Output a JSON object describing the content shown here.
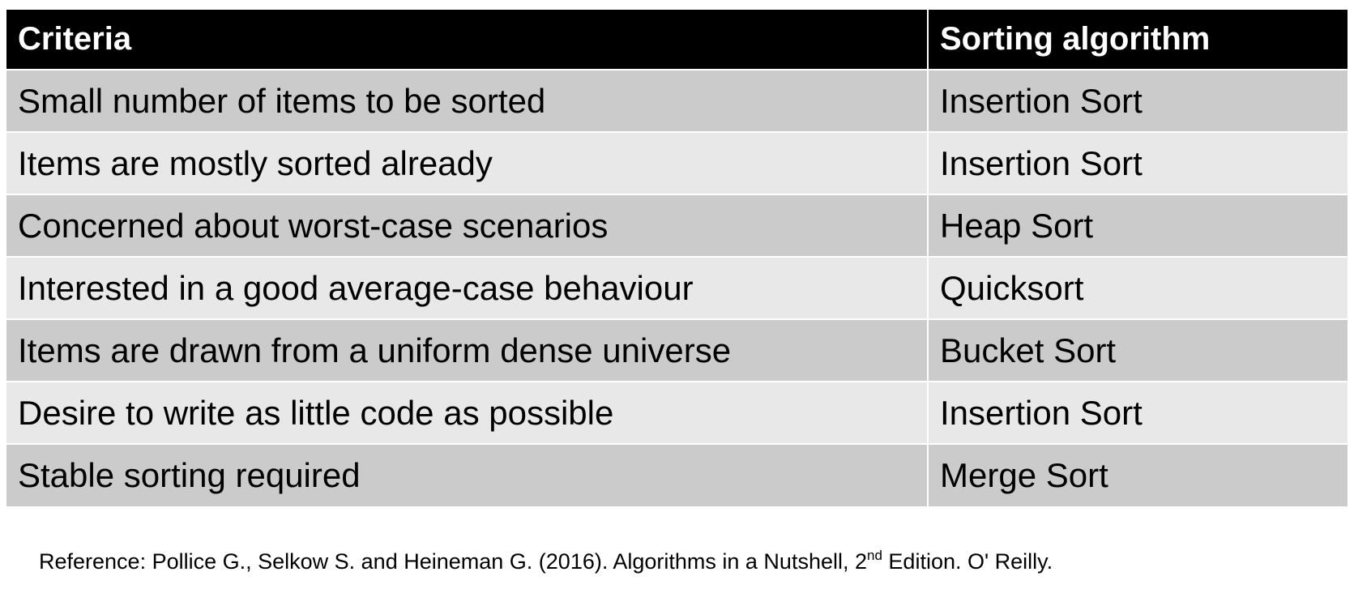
{
  "table": {
    "headers": [
      "Criteria",
      "Sorting algorithm"
    ],
    "rows": [
      {
        "criteria": "Small number of items to be sorted",
        "algorithm": "Insertion Sort"
      },
      {
        "criteria": "Items are mostly sorted already",
        "algorithm": "Insertion Sort"
      },
      {
        "criteria": "Concerned about worst-case scenarios",
        "algorithm": "Heap Sort"
      },
      {
        "criteria": "Interested in a good average-case behaviour",
        "algorithm": "Quicksort"
      },
      {
        "criteria": "Items are drawn from a uniform dense universe",
        "algorithm": "Bucket Sort"
      },
      {
        "criteria": "Desire to write as little code as possible",
        "algorithm": "Insertion Sort"
      },
      {
        "criteria": "Stable sorting required",
        "algorithm": "Merge Sort"
      }
    ]
  },
  "reference": {
    "prefix": "Reference: Pollice G., Selkow S. and Heineman G. (2016). Algorithms in a Nutshell, 2",
    "superscript": "nd",
    "suffix": " Edition. O' Reilly."
  },
  "colors": {
    "header_bg": "#000000",
    "header_text": "#ffffff",
    "row_dark": "#cbcbcc",
    "row_light": "#e8e8e9",
    "background": "#ffffff"
  }
}
